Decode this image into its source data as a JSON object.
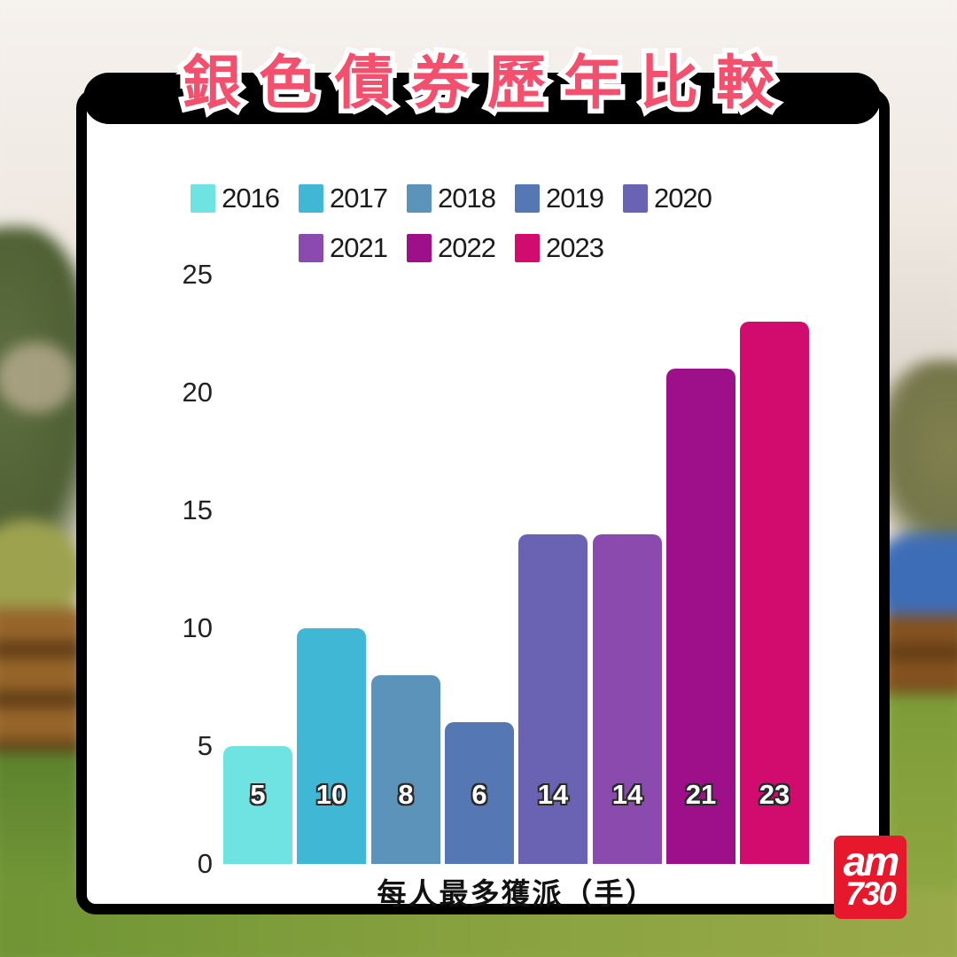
{
  "title": "銀色債券歷年比較",
  "chart_data": {
    "type": "bar",
    "categories": [
      "2016",
      "2017",
      "2018",
      "2019",
      "2020",
      "2021",
      "2022",
      "2023"
    ],
    "values": [
      5,
      10,
      8,
      6,
      14,
      14,
      21,
      23
    ],
    "colors": [
      "#6FE2E2",
      "#40B7D5",
      "#5B93BB",
      "#5577B4",
      "#6A63B4",
      "#8B4BAE",
      "#9E1089",
      "#D10C6E"
    ],
    "bar_labels": [
      "5",
      "10",
      "8",
      "6",
      "14",
      "14",
      "21",
      "23"
    ],
    "xlabel": "每人最多獲派（手）",
    "ylabel": "",
    "ylim": [
      0,
      25
    ],
    "yticks": [
      0,
      5,
      10,
      15,
      20,
      25
    ],
    "grid": false,
    "legend_position": "top",
    "legend_rows": [
      [
        "2016",
        "2017",
        "2018",
        "2019",
        "2020"
      ],
      [
        "2021",
        "2022",
        "2023"
      ]
    ]
  },
  "colors": {
    "title_text": "#F4506E",
    "title_banner": "#000000",
    "logo_background": "#E8182C"
  },
  "logo": {
    "line1": "am",
    "line2": "730"
  }
}
